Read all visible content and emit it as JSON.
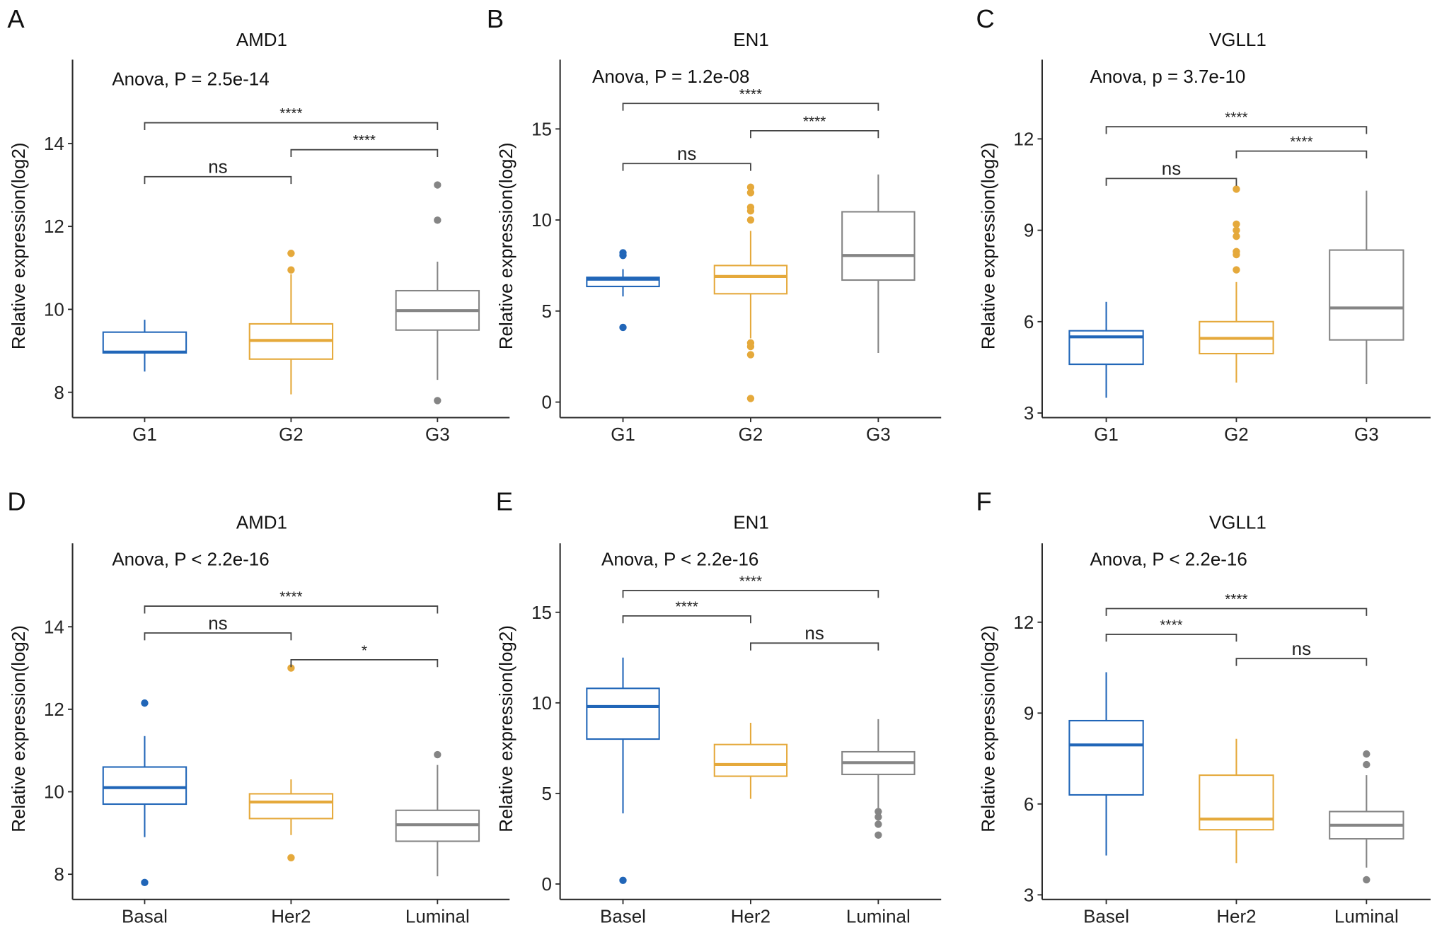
{
  "chart_data": [
    {
      "type": "box",
      "panel": "A",
      "title": "AMD1",
      "annotation": "Anova, P = 2.5e-14",
      "ylabel": "Relative expression(log2)",
      "xlabel": "",
      "ylim": [
        7.5,
        15.8
      ],
      "yticks": [
        8,
        10,
        12,
        14
      ],
      "categories": [
        "G1",
        "G2",
        "G3"
      ],
      "colors": [
        "#2166b8",
        "#e5a93b",
        "#858585"
      ],
      "boxes": [
        {
          "whisker_low": 8.5,
          "q1": 8.95,
          "median": 8.97,
          "q3": 9.45,
          "whisker_high": 9.75,
          "outliers": []
        },
        {
          "whisker_low": 7.95,
          "q1": 8.8,
          "median": 9.25,
          "q3": 9.65,
          "whisker_high": 10.85,
          "outliers": [
            10.95,
            11.35
          ]
        },
        {
          "whisker_low": 8.3,
          "q1": 9.5,
          "median": 9.97,
          "q3": 10.45,
          "whisker_high": 11.15,
          "outliers": [
            12.15,
            13.0,
            7.8
          ]
        }
      ],
      "comparisons": [
        {
          "from": 0,
          "to": 1,
          "label": "ns",
          "y": 13.2
        },
        {
          "from": 1,
          "to": 2,
          "label": "****",
          "y": 13.85
        },
        {
          "from": 0,
          "to": 2,
          "label": "****",
          "y": 14.5
        }
      ]
    },
    {
      "type": "box",
      "panel": "B",
      "title": "EN1",
      "annotation": "Anova, P = 1.2e-08",
      "ylabel": "Relative expression(log2)",
      "xlabel": "",
      "ylim": [
        -0.6,
        18.3
      ],
      "yticks": [
        0,
        5,
        10,
        15
      ],
      "categories": [
        "G1",
        "G2",
        "G3"
      ],
      "colors": [
        "#2166b8",
        "#e5a93b",
        "#858585"
      ],
      "boxes": [
        {
          "whisker_low": 5.8,
          "q1": 6.35,
          "median": 6.75,
          "q3": 6.85,
          "whisker_high": 7.3,
          "outliers": [
            8.2,
            8.05,
            4.1
          ]
        },
        {
          "whisker_low": 3.5,
          "q1": 5.95,
          "median": 6.9,
          "q3": 7.5,
          "whisker_high": 9.4,
          "outliers": [
            10.0,
            10.5,
            10.7,
            11.5,
            11.8,
            3.25,
            3.05,
            2.6,
            0.2
          ]
        },
        {
          "whisker_low": 2.7,
          "q1": 6.7,
          "median": 8.05,
          "q3": 10.45,
          "whisker_high": 12.5,
          "outliers": []
        }
      ],
      "comparisons": [
        {
          "from": 0,
          "to": 1,
          "label": "ns",
          "y": 13.1
        },
        {
          "from": 1,
          "to": 2,
          "label": "****",
          "y": 14.9
        },
        {
          "from": 0,
          "to": 2,
          "label": "****",
          "y": 16.4
        }
      ]
    },
    {
      "type": "box",
      "panel": "C",
      "title": "VGLL1",
      "annotation": "Anova, p = 3.7e-10",
      "ylabel": "Relative expression(log2)",
      "xlabel": "",
      "ylim": [
        3,
        14.3
      ],
      "yticks": [
        3,
        6,
        9,
        12
      ],
      "categories": [
        "G1",
        "G2",
        "G3"
      ],
      "colors": [
        "#2166b8",
        "#e5a93b",
        "#858585"
      ],
      "boxes": [
        {
          "whisker_low": 3.5,
          "q1": 4.6,
          "median": 5.5,
          "q3": 5.7,
          "whisker_high": 6.65,
          "outliers": []
        },
        {
          "whisker_low": 4.0,
          "q1": 4.95,
          "median": 5.45,
          "q3": 6.0,
          "whisker_high": 7.3,
          "outliers": [
            7.7,
            8.2,
            8.3,
            8.8,
            9.0,
            9.2,
            10.35
          ]
        },
        {
          "whisker_low": 3.95,
          "q1": 5.4,
          "median": 6.45,
          "q3": 8.35,
          "whisker_high": 10.3,
          "outliers": []
        }
      ],
      "comparisons": [
        {
          "from": 0,
          "to": 1,
          "label": "ns",
          "y": 10.7
        },
        {
          "from": 1,
          "to": 2,
          "label": "****",
          "y": 11.6
        },
        {
          "from": 0,
          "to": 2,
          "label": "****",
          "y": 12.4
        }
      ]
    },
    {
      "type": "box",
      "panel": "D",
      "title": "AMD1",
      "annotation": "Anova, P < 2.2e-16",
      "ylabel": "Relative expression(log2)",
      "xlabel": "",
      "ylim": [
        7.5,
        15.8
      ],
      "yticks": [
        8,
        10,
        12,
        14
      ],
      "categories": [
        "Basal",
        "Her2",
        "Luminal"
      ],
      "colors": [
        "#2166b8",
        "#e5a93b",
        "#858585"
      ],
      "boxes": [
        {
          "whisker_low": 8.9,
          "q1": 9.7,
          "median": 10.1,
          "q3": 10.6,
          "whisker_high": 11.35,
          "outliers": [
            12.15,
            7.8
          ]
        },
        {
          "whisker_low": 8.95,
          "q1": 9.35,
          "median": 9.75,
          "q3": 9.95,
          "whisker_high": 10.3,
          "outliers": [
            13.0,
            8.4
          ]
        },
        {
          "whisker_low": 7.95,
          "q1": 8.8,
          "median": 9.2,
          "q3": 9.55,
          "whisker_high": 10.65,
          "outliers": [
            10.9
          ]
        }
      ],
      "comparisons": [
        {
          "from": 0,
          "to": 1,
          "label": "ns",
          "y": 13.85
        },
        {
          "from": 1,
          "to": 2,
          "label": "*",
          "y": 13.2
        },
        {
          "from": 0,
          "to": 2,
          "label": "****",
          "y": 14.5
        }
      ]
    },
    {
      "type": "box",
      "panel": "E",
      "title": "EN1",
      "annotation": "Anova, P < 2.2e-16",
      "ylabel": "Relative expression(log2)",
      "xlabel": "",
      "ylim": [
        -0.6,
        18.3
      ],
      "yticks": [
        0,
        5,
        10,
        15
      ],
      "categories": [
        "Basel",
        "Her2",
        "Luminal"
      ],
      "colors": [
        "#2166b8",
        "#e5a93b",
        "#858585"
      ],
      "boxes": [
        {
          "whisker_low": 3.9,
          "q1": 8.0,
          "median": 9.8,
          "q3": 10.8,
          "whisker_high": 12.5,
          "outliers": [
            0.2
          ]
        },
        {
          "whisker_low": 4.7,
          "q1": 5.95,
          "median": 6.6,
          "q3": 7.7,
          "whisker_high": 8.9,
          "outliers": []
        },
        {
          "whisker_low": 4.2,
          "q1": 6.05,
          "median": 6.7,
          "q3": 7.3,
          "whisker_high": 9.1,
          "outliers": [
            4.0,
            3.7,
            3.3,
            2.7
          ]
        }
      ],
      "comparisons": [
        {
          "from": 0,
          "to": 1,
          "label": "****",
          "y": 14.8
        },
        {
          "from": 1,
          "to": 2,
          "label": "ns",
          "y": 13.3
        },
        {
          "from": 0,
          "to": 2,
          "label": "****",
          "y": 16.2
        }
      ]
    },
    {
      "type": "box",
      "panel": "F",
      "title": "VGLL1",
      "annotation": "Anova, P < 2.2e-16",
      "ylabel": "Relative expression(log2)",
      "xlabel": "",
      "ylim": [
        3,
        14.3
      ],
      "yticks": [
        3,
        6,
        9,
        12
      ],
      "categories": [
        "Basel",
        "Her2",
        "Luminal"
      ],
      "colors": [
        "#2166b8",
        "#e5a93b",
        "#858585"
      ],
      "boxes": [
        {
          "whisker_low": 4.3,
          "q1": 6.3,
          "median": 7.95,
          "q3": 8.75,
          "whisker_high": 10.35,
          "outliers": []
        },
        {
          "whisker_low": 4.05,
          "q1": 5.15,
          "median": 5.5,
          "q3": 6.95,
          "whisker_high": 8.15,
          "outliers": []
        },
        {
          "whisker_low": 3.9,
          "q1": 4.85,
          "median": 5.3,
          "q3": 5.75,
          "whisker_high": 6.95,
          "outliers": [
            7.65,
            7.3,
            3.5
          ]
        }
      ],
      "comparisons": [
        {
          "from": 0,
          "to": 1,
          "label": "****",
          "y": 11.6
        },
        {
          "from": 1,
          "to": 2,
          "label": "ns",
          "y": 10.8
        },
        {
          "from": 0,
          "to": 2,
          "label": "****",
          "y": 12.45
        }
      ]
    }
  ]
}
